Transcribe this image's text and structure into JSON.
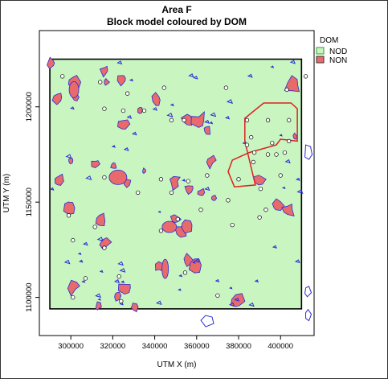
{
  "chart_data": {
    "type": "map",
    "title": "Area F",
    "subtitle": "Block model coloured by DOM",
    "xlabel": "UTM X (m)",
    "ylabel": "UTM Y (m)",
    "x_ticks": [
      300000,
      320000,
      340000,
      360000,
      380000,
      400000
    ],
    "y_ticks": [
      1100000,
      1150000,
      1200000
    ],
    "x_tick_labels": [
      "300000",
      "320000",
      "340000",
      "360000",
      "380000",
      "400000"
    ],
    "y_tick_labels": [
      "1100000",
      "1150000",
      "1200000"
    ],
    "xlim": [
      285000,
      416000
    ],
    "ylim": [
      1080000,
      1240000
    ],
    "grid": false,
    "legend": {
      "title": "DOM",
      "placement": "top-right",
      "entries": [
        {
          "label": "NOD",
          "fill": "#c8f5c0",
          "border": "#2ca02c"
        },
        {
          "label": "NON",
          "fill": "#e96a6a",
          "border": "#333333"
        }
      ]
    },
    "block_extent": {
      "x": [
        290000,
        410000
      ],
      "y": [
        1094000,
        1225000
      ]
    },
    "colors": {
      "NOD": "#c8f5c0",
      "NON": "#e96a6a",
      "outline": "#000000",
      "polygons": "#2b2bd6",
      "target_outline": "#dd2222"
    },
    "non_patches": [
      [
        290500,
        1223000
      ],
      [
        301500,
        1213000
      ],
      [
        302000,
        1205000
      ],
      [
        294000,
        1205000
      ],
      [
        316000,
        1219000
      ],
      [
        317000,
        1213000
      ],
      [
        324500,
        1215000
      ],
      [
        333000,
        1198000
      ],
      [
        325000,
        1191000
      ],
      [
        341000,
        1203500
      ],
      [
        356000,
        1193000
      ],
      [
        361500,
        1193000
      ],
      [
        365000,
        1188000
      ],
      [
        367000,
        1172000
      ],
      [
        390000,
        1162000
      ],
      [
        320500,
        1169000
      ],
      [
        312000,
        1170000
      ],
      [
        300000,
        1172000
      ],
      [
        294000,
        1161000
      ],
      [
        299500,
        1147000
      ],
      [
        327000,
        1160000
      ],
      [
        335000,
        1166000
      ],
      [
        349500,
        1161000
      ],
      [
        356500,
        1157000
      ],
      [
        362000,
        1155000
      ],
      [
        368000,
        1152000
      ],
      [
        398500,
        1148000
      ],
      [
        404000,
        1146000
      ],
      [
        350000,
        1141000
      ],
      [
        353000,
        1135000
      ],
      [
        356000,
        1119000
      ],
      [
        359500,
        1117000
      ],
      [
        342500,
        1116000
      ],
      [
        314000,
        1140000
      ],
      [
        316000,
        1129000
      ],
      [
        326500,
        1105000
      ],
      [
        301000,
        1106000
      ],
      [
        322000,
        1101000
      ],
      [
        313000,
        1095000
      ],
      [
        330000,
        1095000
      ],
      [
        379000,
        1098000
      ],
      [
        407000,
        1184000
      ],
      [
        406000,
        1211000
      ],
      [
        355000,
        1138000
      ]
    ],
    "target_zone": [
      [
        392000,
        1202000
      ],
      [
        395000,
        1202000
      ],
      [
        405000,
        1202000
      ],
      [
        408000,
        1199000
      ],
      [
        408000,
        1182000
      ],
      [
        400000,
        1183000
      ],
      [
        398000,
        1180000
      ],
      [
        385000,
        1176000
      ],
      [
        377000,
        1172000
      ],
      [
        375000,
        1166000
      ],
      [
        378000,
        1158000
      ],
      [
        388000,
        1159000
      ],
      [
        383000,
        1182000
      ],
      [
        383000,
        1194000
      ]
    ],
    "drill_holes": [
      [
        296000,
        1216000
      ],
      [
        314000,
        1213000
      ],
      [
        327000,
        1207000
      ],
      [
        344500,
        1210000
      ],
      [
        374000,
        1210000
      ],
      [
        403000,
        1209000
      ],
      [
        412000,
        1216000
      ],
      [
        316000,
        1199000
      ],
      [
        325000,
        1198000
      ],
      [
        335000,
        1198000
      ],
      [
        348000,
        1193000
      ],
      [
        354000,
        1193000
      ],
      [
        384000,
        1193000
      ],
      [
        394000,
        1193000
      ],
      [
        404000,
        1193000
      ],
      [
        386000,
        1184000
      ],
      [
        396000,
        1181000
      ],
      [
        387000,
        1171000
      ],
      [
        398000,
        1175000
      ],
      [
        404000,
        1182000
      ],
      [
        380000,
        1162000
      ],
      [
        384000,
        1180000
      ],
      [
        394000,
        1175000
      ],
      [
        387500,
        1176000
      ],
      [
        402000,
        1176000
      ],
      [
        316000,
        1163000
      ],
      [
        343000,
        1162000
      ],
      [
        356000,
        1161000
      ],
      [
        365000,
        1164000
      ],
      [
        390500,
        1157000
      ],
      [
        400000,
        1164000
      ],
      [
        332000,
        1155000
      ],
      [
        348000,
        1155000
      ],
      [
        375000,
        1151000
      ],
      [
        393000,
        1146000
      ],
      [
        351000,
        1141000
      ],
      [
        390000,
        1142000
      ],
      [
        299000,
        1143000
      ],
      [
        311500,
        1137000
      ],
      [
        343000,
        1135000
      ],
      [
        362000,
        1146000
      ],
      [
        377000,
        1138000
      ],
      [
        301000,
        1130000
      ],
      [
        316000,
        1126000
      ],
      [
        307000,
        1110000
      ],
      [
        323000,
        1111000
      ],
      [
        354500,
        1113000
      ],
      [
        324000,
        1098000
      ],
      [
        370000,
        1101000
      ],
      [
        301000,
        1100000
      ]
    ]
  }
}
